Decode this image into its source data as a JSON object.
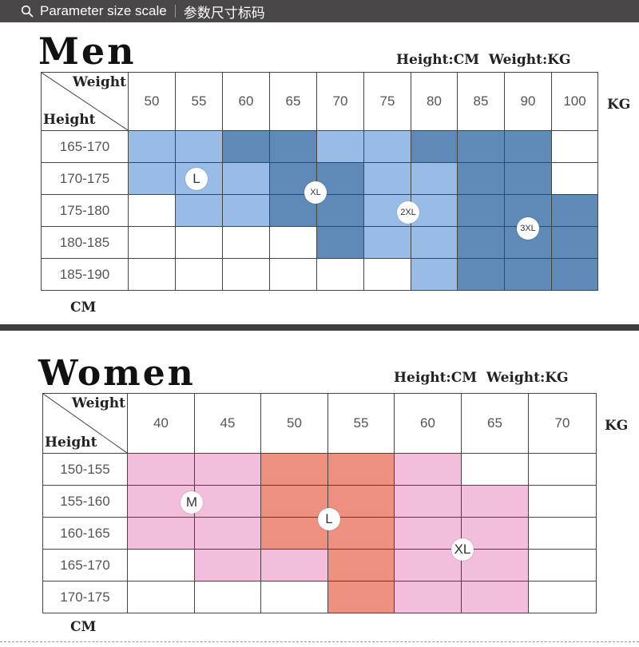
{
  "header": {
    "label_en": "Parameter size scale",
    "label_cn": "参数尺寸标码"
  },
  "men": {
    "title": "Men",
    "units": "Height:CM  Weight:KG",
    "corner_weight": "Weight",
    "corner_height": "Height",
    "kg": "KG",
    "cm": "CM",
    "weights": [
      "50",
      "55",
      "60",
      "65",
      "70",
      "75",
      "80",
      "85",
      "90",
      "100"
    ],
    "heights": [
      "165-170",
      "170-175",
      "175-180",
      "180-185",
      "185-190"
    ],
    "grid": [
      [
        "L",
        "L",
        "XL",
        "XL",
        "2XL",
        "2XL",
        "3XL",
        "3XL",
        "3XL",
        ""
      ],
      [
        "L",
        "L",
        "2XL",
        "XL",
        "XL",
        "2XL",
        "2XL",
        "3XL",
        "3XL",
        ""
      ],
      [
        "",
        "L",
        "L",
        "XL",
        "XL",
        "2XL",
        "2XL",
        "3XL",
        "3XL",
        "3XL"
      ],
      [
        "",
        "",
        "",
        "",
        "XL",
        "2XL",
        "2XL",
        "3XL",
        "3XL",
        "3XL"
      ],
      [
        "",
        "",
        "",
        "",
        "",
        "",
        "2XL",
        "3XL",
        "3XL",
        "3XL"
      ]
    ],
    "size_labels": [
      "L",
      "XL",
      "2XL",
      "3XL"
    ]
  },
  "women": {
    "title": "Women",
    "units": "Height:CM  Weight:KG",
    "corner_weight": "Weight",
    "corner_height": "Height",
    "kg": "KG",
    "cm": "CM",
    "weights": [
      "40",
      "45",
      "50",
      "55",
      "60",
      "65",
      "70"
    ],
    "heights": [
      "150-155",
      "155-160",
      "160-165",
      "165-170",
      "170-175"
    ],
    "grid": [
      [
        "M",
        "M",
        "L",
        "L",
        "XL",
        "",
        ""
      ],
      [
        "M",
        "M",
        "L",
        "L",
        "XL",
        "XL",
        ""
      ],
      [
        "M",
        "M",
        "L",
        "L",
        "XL",
        "XL",
        ""
      ],
      [
        "",
        "M",
        "M",
        "L",
        "XL",
        "XL",
        ""
      ],
      [
        "",
        "",
        "",
        "L",
        "XL",
        "XL",
        ""
      ]
    ],
    "size_labels": [
      "M",
      "L",
      "XL"
    ]
  },
  "colors": {
    "topbar": "#4a4748",
    "men_light": "#98bce6",
    "men_dark": "#5f8ab7",
    "women_pink": "#f3bddc",
    "women_salmon": "#ee9080"
  }
}
